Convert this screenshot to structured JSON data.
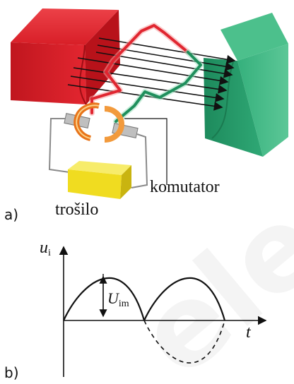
{
  "part_a": {
    "marker": "a)",
    "label_commutator": "komutator",
    "label_load": "trošilo"
  },
  "part_b": {
    "marker": "b)",
    "axis_y_main": "u",
    "axis_y_sub": "i",
    "axis_x": "t",
    "amplitude_main": "U",
    "amplitude_sub": "im"
  },
  "watermark": {
    "text": "ele"
  },
  "colors": {
    "magnet_north": "#e0202a",
    "magnet_south": "#2a9d6c",
    "field_lines": "#111111",
    "load": "#f2e12e",
    "commutator": "#f08020"
  }
}
